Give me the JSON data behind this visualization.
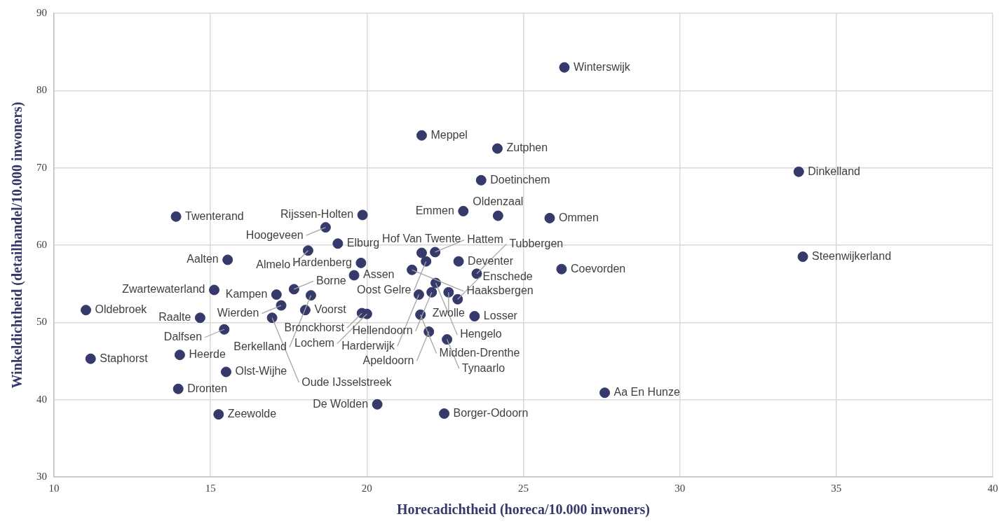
{
  "chart_data": {
    "type": "scatter",
    "xlabel": "Horecadichtheid (horeca/10.000 inwoners)",
    "ylabel": "Winkeldichtheid (detailhandel/10.000 inwoners)",
    "x": [
      26.31,
      21.75,
      24.17,
      23.65,
      23.08,
      24.19,
      25.84,
      19.86,
      21.75,
      22.18,
      21.89,
      22.93,
      21.44,
      22.2,
      19.81,
      19.59,
      23.51,
      22.61,
      22.07,
      21.66,
      22.9,
      23.44,
      21.71,
      19.84,
      20.0,
      21.98,
      22.56,
      20.33,
      22.47,
      26.22,
      33.8,
      33.93,
      27.6,
      13.9,
      18.68,
      19.07,
      18.12,
      15.55,
      15.12,
      17.67,
      18.21,
      17.11,
      17.26,
      18.03,
      14.67,
      15.44,
      16.97,
      11.02,
      14.02,
      11.17,
      15.5,
      13.97,
      15.26
    ],
    "values": [
      83.0,
      74.2,
      72.5,
      68.4,
      64.4,
      63.8,
      63.5,
      63.9,
      59.0,
      59.1,
      57.9,
      57.9,
      56.8,
      55.1,
      57.7,
      56.1,
      56.3,
      53.9,
      53.9,
      53.6,
      53.0,
      50.8,
      51.0,
      51.2,
      51.1,
      48.8,
      47.8,
      39.4,
      38.2,
      56.9,
      69.5,
      58.5,
      40.9,
      63.7,
      62.3,
      60.2,
      59.3,
      58.1,
      54.2,
      54.3,
      53.5,
      53.6,
      52.2,
      51.6,
      50.6,
      49.1,
      50.6,
      51.6,
      45.8,
      45.3,
      43.6,
      41.4,
      38.1
    ],
    "color": "#353a6a",
    "marker": "circle",
    "grid": true,
    "legend": false,
    "xlim": [
      10,
      40
    ],
    "xticks": [
      10,
      15,
      20,
      25,
      30,
      35,
      40
    ],
    "ylim": [
      30,
      90
    ],
    "yticks": [
      30,
      40,
      50,
      60,
      70,
      80,
      90
    ],
    "annotations": [
      {
        "text": "Winterswijk",
        "x": 26.31,
        "y": 83.0
      },
      {
        "text": "Meppel",
        "x": 21.75,
        "y": 74.2
      },
      {
        "text": "Zutphen",
        "x": 24.17,
        "y": 72.5
      },
      {
        "text": "Doetinchem",
        "x": 23.65,
        "y": 68.4
      },
      {
        "text": "Emmen",
        "x": 23.08,
        "y": 64.4
      },
      {
        "text": "Oldenzaal",
        "x": 24.19,
        "y": 63.8
      },
      {
        "text": "Ommen",
        "x": 25.84,
        "y": 63.5
      },
      {
        "text": "Rijssen-Holten",
        "x": 19.86,
        "y": 63.9
      },
      {
        "text": "Hof Van Twente",
        "x": 21.75,
        "y": 59.0
      },
      {
        "text": "Hattem",
        "x": 22.18,
        "y": 59.1
      },
      {
        "text": "Oost Gelre",
        "x": 21.89,
        "y": 57.9
      },
      {
        "text": "Deventer",
        "x": 22.93,
        "y": 57.9
      },
      {
        "text": "Haaksbergen",
        "x": 21.44,
        "y": 56.8
      },
      {
        "text": "Hengelo",
        "x": 22.2,
        "y": 55.1
      },
      {
        "text": "Hardenberg",
        "x": 19.81,
        "y": 57.7
      },
      {
        "text": "Assen",
        "x": 19.59,
        "y": 56.1
      },
      {
        "text": "Tubbergen",
        "x": 23.51,
        "y": 56.3
      },
      {
        "text": "Zwolle",
        "x": 22.61,
        "y": 53.9
      },
      {
        "text": "Hellendoorn",
        "x": 22.07,
        "y": 53.9
      },
      {
        "text": "Harderwijk",
        "x": 21.66,
        "y": 53.6
      },
      {
        "text": "Enschede",
        "x": 22.9,
        "y": 53.0
      },
      {
        "text": "Losser",
        "x": 23.44,
        "y": 50.8
      },
      {
        "text": "Midden-Drenthe",
        "x": 21.71,
        "y": 51.0
      },
      {
        "text": "Bronckhorst",
        "x": 19.84,
        "y": 51.2
      },
      {
        "text": "Lochem",
        "x": 20.0,
        "y": 51.1
      },
      {
        "text": "Apeldoorn",
        "x": 21.98,
        "y": 48.8
      },
      {
        "text": "Tynaarlo",
        "x": 22.56,
        "y": 47.8
      },
      {
        "text": "De Wolden",
        "x": 20.33,
        "y": 39.4
      },
      {
        "text": "Borger-Odoorn",
        "x": 22.47,
        "y": 38.2
      },
      {
        "text": "Coevorden",
        "x": 26.22,
        "y": 56.9
      },
      {
        "text": "Dinkelland",
        "x": 33.8,
        "y": 69.5
      },
      {
        "text": "Steenwijkerland",
        "x": 33.93,
        "y": 58.5
      },
      {
        "text": "Aa En Hunze",
        "x": 27.6,
        "y": 40.9
      },
      {
        "text": "Twenterand",
        "x": 13.9,
        "y": 63.7
      },
      {
        "text": "Hoogeveen",
        "x": 18.68,
        "y": 62.3
      },
      {
        "text": "Elburg",
        "x": 19.07,
        "y": 60.2
      },
      {
        "text": "Almelo",
        "x": 18.12,
        "y": 59.3
      },
      {
        "text": "Aalten",
        "x": 15.55,
        "y": 58.1
      },
      {
        "text": "Zwartewaterland",
        "x": 15.12,
        "y": 54.2
      },
      {
        "text": "Borne",
        "x": 17.67,
        "y": 54.3
      },
      {
        "text": "Berkelland",
        "x": 18.21,
        "y": 53.5
      },
      {
        "text": "Kampen",
        "x": 17.11,
        "y": 53.6
      },
      {
        "text": "Wierden",
        "x": 17.26,
        "y": 52.2
      },
      {
        "text": "Voorst",
        "x": 18.03,
        "y": 51.6
      },
      {
        "text": "Raalte",
        "x": 14.67,
        "y": 50.6
      },
      {
        "text": "Dalfsen",
        "x": 15.44,
        "y": 49.1
      },
      {
        "text": "Oude IJsselstreek",
        "x": 16.97,
        "y": 50.6
      },
      {
        "text": "Oldebroek",
        "x": 11.02,
        "y": 51.6
      },
      {
        "text": "Heerde",
        "x": 14.02,
        "y": 45.8
      },
      {
        "text": "Staphorst",
        "x": 11.17,
        "y": 45.3
      },
      {
        "text": "Olst-Wijhe",
        "x": 15.5,
        "y": 43.6
      },
      {
        "text": "Dronten",
        "x": 13.97,
        "y": 41.4
      },
      {
        "text": "Zeewolde",
        "x": 15.26,
        "y": 38.1
      }
    ]
  }
}
